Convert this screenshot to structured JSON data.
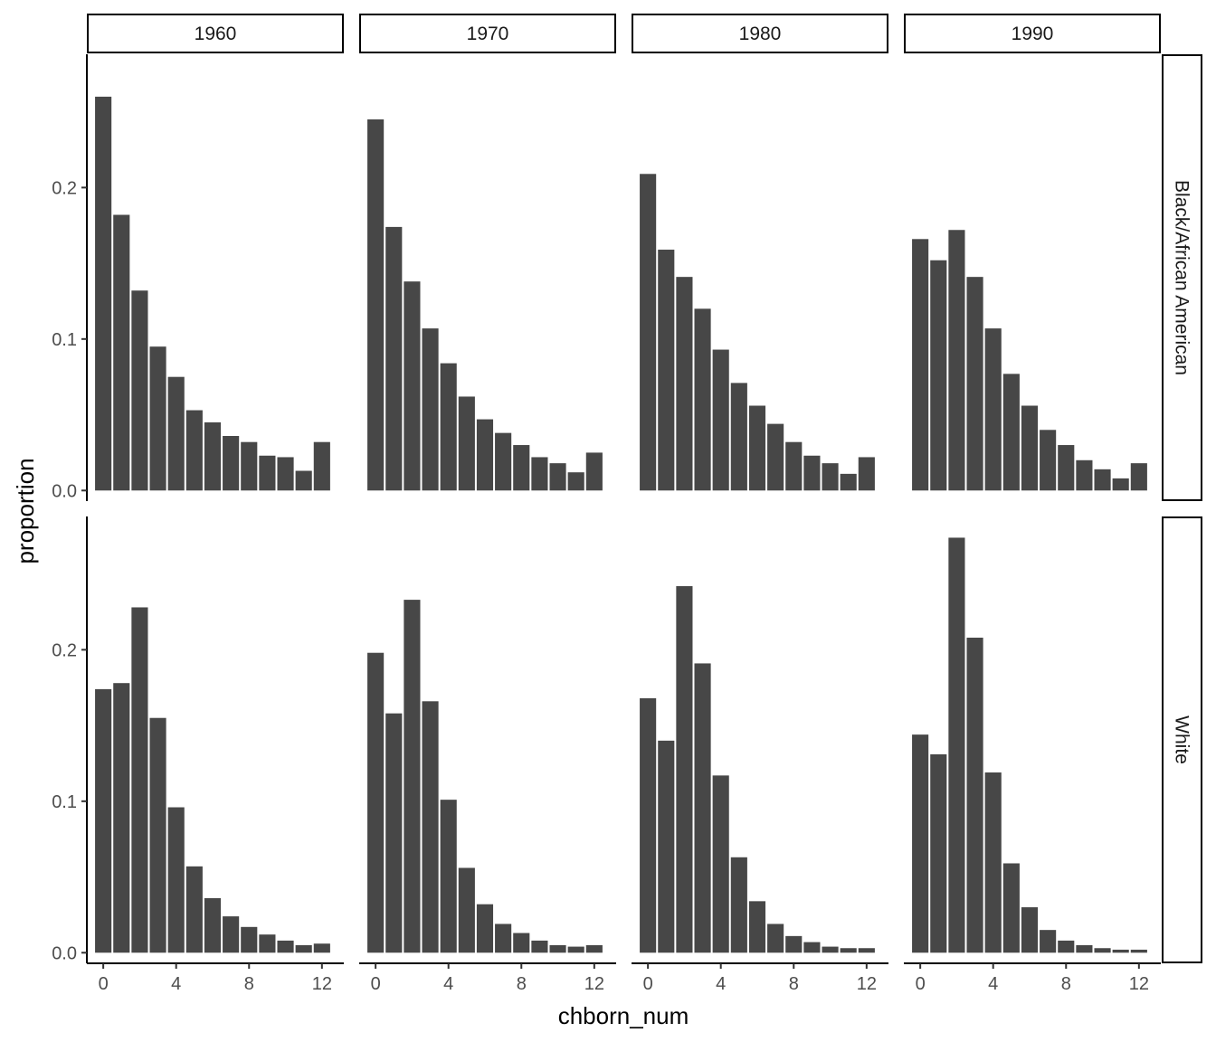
{
  "chart_data": {
    "type": "bar",
    "xlabel": "chborn_num",
    "ylabel": "proportion",
    "columns": [
      "1960",
      "1970",
      "1980",
      "1990"
    ],
    "rows": [
      "Black/African American",
      "White"
    ],
    "x": [
      0,
      1,
      2,
      3,
      4,
      5,
      6,
      7,
      8,
      9,
      10,
      11,
      12
    ],
    "x_ticks": [
      0,
      4,
      8,
      12
    ],
    "y_ticks": [
      0.0,
      0.1,
      0.2
    ],
    "y_tick_labels": [
      "0.0",
      "0.1",
      "0.2"
    ],
    "xlim": [
      -0.9,
      13.2
    ],
    "ylim": [
      -0.007,
      0.288
    ],
    "bar_color": "#474747",
    "panels": [
      {
        "row": "Black/African American",
        "column": "1960",
        "values": [
          0.26,
          0.182,
          0.132,
          0.095,
          0.075,
          0.053,
          0.045,
          0.036,
          0.032,
          0.023,
          0.022,
          0.013,
          0.032
        ]
      },
      {
        "row": "Black/African American",
        "column": "1970",
        "values": [
          0.245,
          0.174,
          0.138,
          0.107,
          0.084,
          0.062,
          0.047,
          0.038,
          0.03,
          0.022,
          0.018,
          0.012,
          0.025
        ]
      },
      {
        "row": "Black/African American",
        "column": "1980",
        "values": [
          0.209,
          0.159,
          0.141,
          0.12,
          0.093,
          0.071,
          0.056,
          0.044,
          0.032,
          0.023,
          0.018,
          0.011,
          0.022
        ]
      },
      {
        "row": "Black/African American",
        "column": "1990",
        "values": [
          0.166,
          0.152,
          0.172,
          0.141,
          0.107,
          0.077,
          0.056,
          0.04,
          0.03,
          0.02,
          0.014,
          0.008,
          0.018
        ]
      },
      {
        "row": "White",
        "column": "1960",
        "values": [
          0.174,
          0.178,
          0.228,
          0.155,
          0.096,
          0.057,
          0.036,
          0.024,
          0.017,
          0.012,
          0.008,
          0.005,
          0.006
        ]
      },
      {
        "row": "White",
        "column": "1970",
        "values": [
          0.198,
          0.158,
          0.233,
          0.166,
          0.101,
          0.056,
          0.032,
          0.019,
          0.013,
          0.008,
          0.005,
          0.004,
          0.005
        ]
      },
      {
        "row": "White",
        "column": "1980",
        "values": [
          0.168,
          0.14,
          0.242,
          0.191,
          0.117,
          0.063,
          0.034,
          0.019,
          0.011,
          0.007,
          0.004,
          0.003,
          0.003
        ]
      },
      {
        "row": "White",
        "column": "1990",
        "values": [
          0.144,
          0.131,
          0.274,
          0.208,
          0.119,
          0.059,
          0.03,
          0.015,
          0.008,
          0.005,
          0.003,
          0.002,
          0.002
        ]
      }
    ]
  }
}
